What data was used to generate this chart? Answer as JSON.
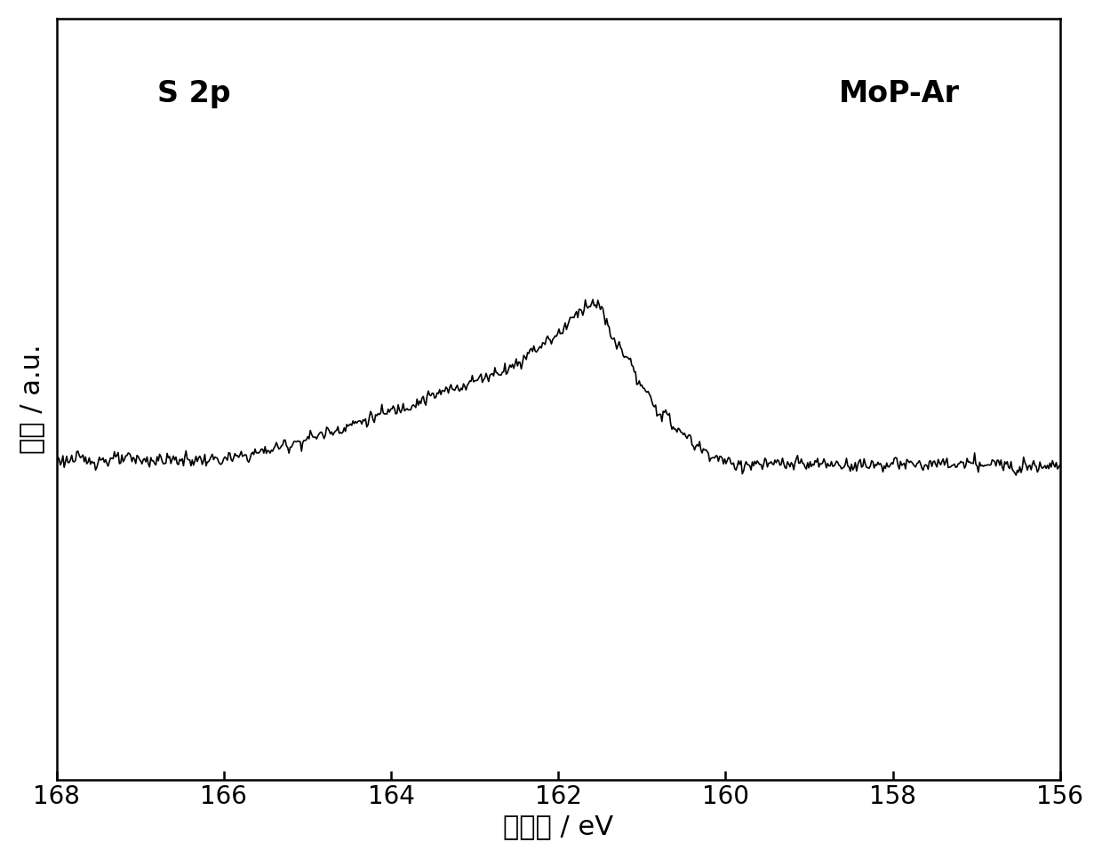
{
  "xlabel": "结合能 / eV",
  "ylabel": "强度 / a.u.",
  "label_left": "S 2p",
  "label_right": "MoP-Ar",
  "xlim": [
    168,
    156
  ],
  "x_ticks": [
    168,
    166,
    164,
    162,
    160,
    158,
    156
  ],
  "background_color": "#ffffff",
  "line_color": "#000000",
  "line_width": 1.2,
  "xlabel_fontsize": 22,
  "ylabel_fontsize": 22,
  "tick_fontsize": 20,
  "annotation_fontsize": 24
}
